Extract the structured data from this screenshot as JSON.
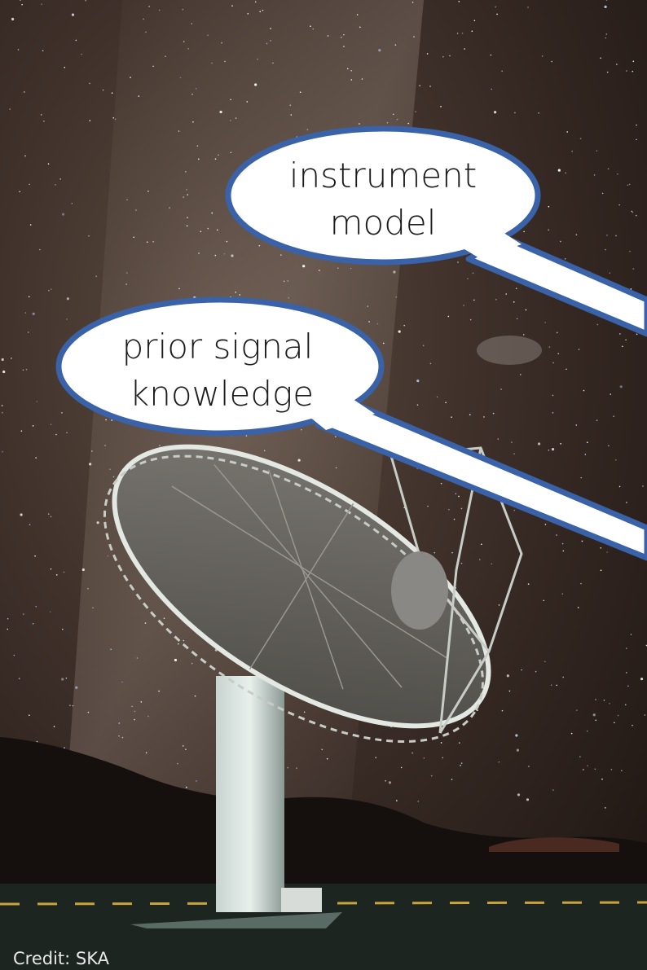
{
  "bubbles": [
    {
      "lines": [
        "instrument",
        "model"
      ]
    },
    {
      "lines": [
        "prior signal",
        "knowledge"
      ]
    }
  ],
  "credit": "Credit: SKA"
}
